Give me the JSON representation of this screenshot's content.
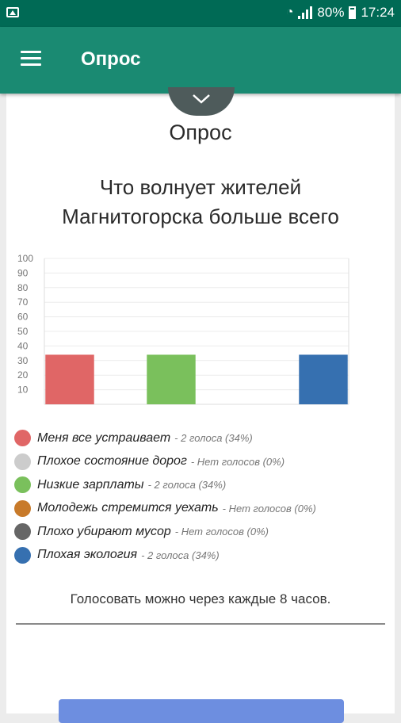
{
  "status_bar": {
    "battery": "80%",
    "time": "17:24"
  },
  "app_bar": {
    "title": "Опрос"
  },
  "poll": {
    "heading": "Опрос",
    "question_line1": "Что волнует жителей",
    "question_line2": "Магнитогорска больше всего",
    "note": "Голосовать можно через каждые 8 часов."
  },
  "chart_data": {
    "type": "bar",
    "categories": [
      "Меня все устраивает",
      "Плохое состояние дорог",
      "Низкие зарплаты",
      "Молодежь стремится уехать",
      "Плохо убирают мусор",
      "Плохая экология"
    ],
    "values": [
      34,
      0,
      34,
      0,
      0,
      34
    ],
    "colors": [
      "#e06666",
      "#cccccc",
      "#7ac05c",
      "#c87a2a",
      "#666666",
      "#3670b0"
    ],
    "yticks": [
      "100",
      "90",
      "80",
      "70",
      "60",
      "50",
      "40",
      "30",
      "20",
      "10"
    ],
    "ylim": [
      0,
      100
    ],
    "grid": true
  },
  "legend": [
    {
      "name": "Меня все устраивает",
      "stat": "- 2 голоса (34%)",
      "color": "#e06666"
    },
    {
      "name": "Плохое состояние дорог",
      "stat": "- Нет голосов (0%)",
      "color": "#cccccc"
    },
    {
      "name": "Низкие зарплаты",
      "stat": "- 2 голоса (34%)",
      "color": "#7ac05c"
    },
    {
      "name": "Молодежь стремится уехать",
      "stat": "- Нет голосов (0%)",
      "color": "#c87a2a"
    },
    {
      "name": "Плохо убирают мусор",
      "stat": "- Нет голосов (0%)",
      "color": "#666666"
    },
    {
      "name": "Плохая экология",
      "stat": "- 2 голоса (34%)",
      "color": "#3670b0"
    }
  ],
  "icons": {
    "status_left": "image-icon",
    "menu": "hamburger-menu-icon",
    "collapse": "chevron-down-icon"
  }
}
